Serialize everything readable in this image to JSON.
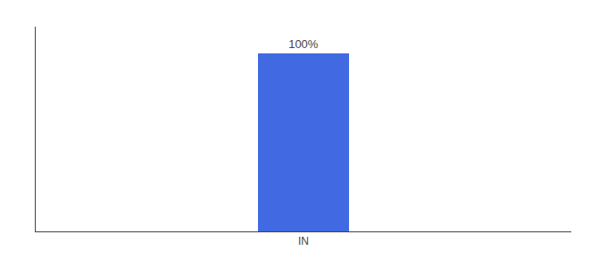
{
  "chart_data": {
    "type": "bar",
    "categories": [
      "IN"
    ],
    "values": [
      100
    ],
    "value_labels": [
      "100%"
    ],
    "data_labels": true,
    "color": "#4169e1",
    "ylim": [
      0,
      115
    ],
    "yticks": [],
    "grid": false,
    "tick_labels": "x"
  }
}
